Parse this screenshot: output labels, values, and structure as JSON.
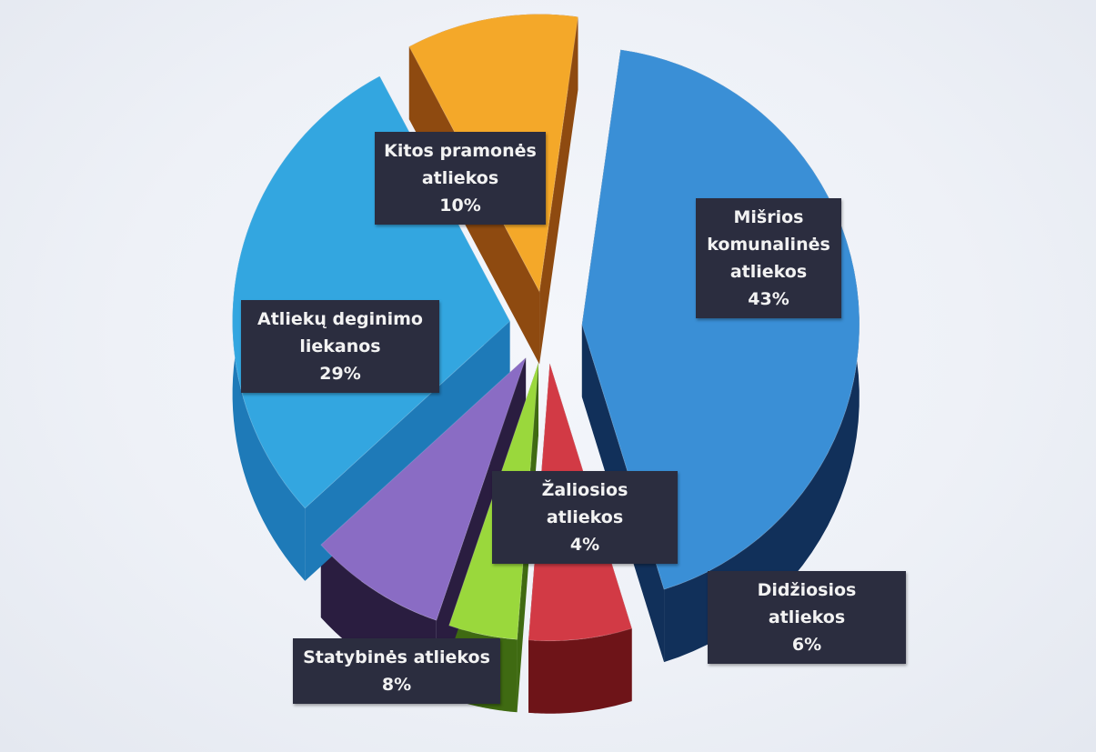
{
  "chart_data": {
    "type": "pie",
    "title": "",
    "slices": [
      {
        "label": "Mišrios komunalinės atliekos",
        "value": 43,
        "value_label": "43%",
        "color": "#3a8fd6",
        "side_color": "#11305a"
      },
      {
        "label": "Didžiosios atliekos",
        "value": 6,
        "value_label": "6%",
        "color": "#d23a45",
        "side_color": "#6e1418"
      },
      {
        "label": "Žaliosios atliekos",
        "value": 4,
        "value_label": "4%",
        "color": "#9ad83c",
        "side_color": "#3f6a12"
      },
      {
        "label": "Statybinės atliekos",
        "value": 8,
        "value_label": "8%",
        "color": "#8a6cc4",
        "side_color": "#2a1d40"
      },
      {
        "label": "Atliekų deginimo liekanos",
        "value": 29,
        "value_label": "29%",
        "color": "#33a6e0",
        "side_color": "#1e7ab8"
      },
      {
        "label": "Kitos pramonės atliekos",
        "value": 10,
        "value_label": "10%",
        "color": "#f4a829",
        "side_color": "#8e4a10"
      }
    ]
  },
  "labels": {
    "misrios": "Mišrios\nkomunalinės\natliekos\n43%",
    "didziosios": "Didžiosios atliekos\n6%",
    "zaliosios": "Žaliosios atliekos\n4%",
    "statybines": "Statybinės atliekos\n8%",
    "deginimo": "Atliekų deginimo\nliekanos\n29%",
    "kitos": "Kitos pramonės\natliekos\n10%"
  }
}
